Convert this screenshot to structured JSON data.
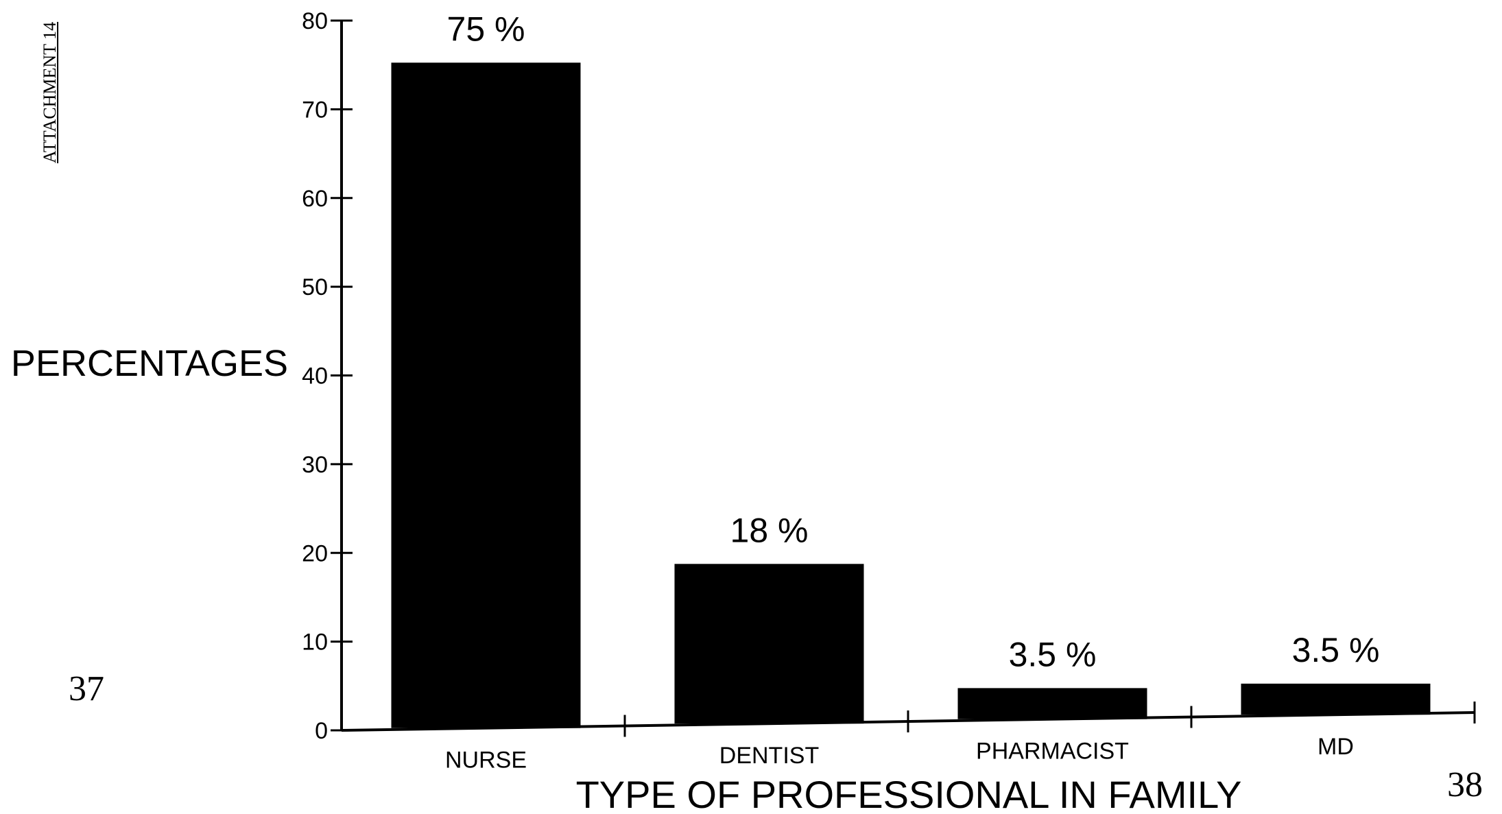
{
  "side_note": "ATTACHMENT 14",
  "page_numbers": {
    "left": "37",
    "right": "38"
  },
  "colors": {
    "bar": "#000000",
    "axis": "#000000",
    "background": "#ffffff"
  },
  "chart_data": {
    "type": "bar",
    "title": "",
    "xlabel": "TYPE OF PROFESSIONAL IN FAMILY",
    "ylabel": "PERCENTAGES",
    "categories": [
      "NURSE",
      "DENTIST",
      "PHARMACIST",
      "MD"
    ],
    "values": [
      75,
      18,
      3.5,
      3.5
    ],
    "data_labels": [
      "75 %",
      "18 %",
      "3.5 %",
      "3.5 %"
    ],
    "ylim": [
      0,
      80
    ],
    "yticks": [
      0,
      10,
      20,
      30,
      40,
      50,
      60,
      70,
      80
    ],
    "grid": false,
    "legend": "none"
  }
}
